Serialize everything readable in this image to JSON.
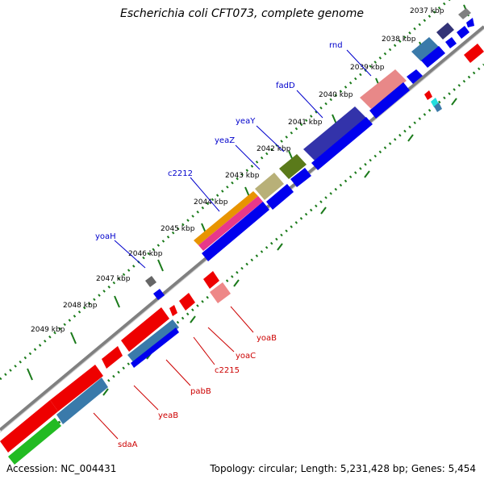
{
  "title": "Escherichia coli CFT073, complete genome",
  "footer": {
    "accession": "Accession: NC_004431",
    "topology": "Topology: circular; Length: 5,231,428 bp; Genes: 5,454"
  },
  "colors": {
    "backbone": "#808080",
    "tick": "#1a7a1a",
    "label_plus": "#0000cc",
    "label_minus": "#cc0000"
  },
  "ticks": [
    "2037 kbp",
    "2038 kbp",
    "2039 kbp",
    "2040 kbp",
    "2041 kbp",
    "2042 kbp",
    "2043 kbp",
    "2044 kbp",
    "2045 kbp",
    "2046 kbp",
    "2047 kbp",
    "2048 kbp",
    "2049 kbp"
  ],
  "plus_labels": [
    "rnd",
    "fadD",
    "yeaY",
    "yeaZ",
    "c2212",
    "yoaH"
  ],
  "minus_labels": [
    "yoaB",
    "yoaC",
    "c2215",
    "pabB",
    "yeaB",
    "sdaA"
  ]
}
